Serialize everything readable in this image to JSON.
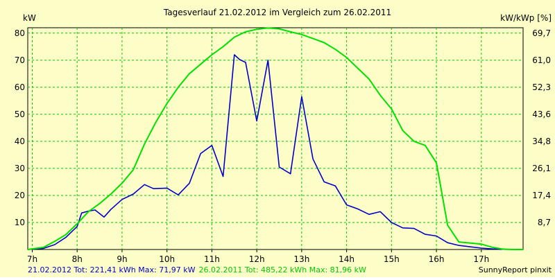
{
  "chart_data": {
    "type": "line",
    "title": "Tagesverlauf 21.02.2012 im Vergleich zum 26.02.2011",
    "ylabel_left": "kW",
    "ylabel_right": "kW/kWp [%]",
    "xlim": [
      6.9,
      17.93
    ],
    "ylim": [
      0,
      82
    ],
    "x_ticks": [
      7,
      8,
      9,
      10,
      11,
      12,
      13,
      14,
      15,
      16,
      17
    ],
    "x_tick_labels": [
      "7h",
      "8h",
      "9h",
      "10h",
      "11h",
      "12h",
      "13h",
      "14h",
      "15h",
      "16h",
      "17h"
    ],
    "y_ticks_left": [
      10,
      20,
      30,
      40,
      50,
      60,
      70,
      80
    ],
    "y_ticks_right": [
      8.7,
      17.4,
      26.1,
      34.8,
      43.6,
      52.3,
      61.0,
      69.7
    ],
    "grid": true,
    "series": [
      {
        "name": "21.02.2012",
        "color": "#0000c8",
        "x": [
          6.9,
          7.25,
          7.5,
          7.75,
          8.0,
          8.1,
          8.25,
          8.4,
          8.6,
          8.75,
          9.0,
          9.25,
          9.5,
          9.7,
          10.0,
          10.25,
          10.5,
          10.75,
          11.0,
          11.25,
          11.5,
          11.62,
          11.75,
          12.0,
          12.25,
          12.5,
          12.75,
          13.0,
          13.25,
          13.5,
          13.75,
          14.0,
          14.25,
          14.5,
          14.75,
          15.0,
          15.25,
          15.5,
          15.75,
          16.0,
          16.25,
          16.5,
          16.75,
          17.0,
          17.25,
          17.5,
          17.75,
          17.93
        ],
        "y": [
          0,
          0.4,
          1.8,
          4.5,
          8.5,
          13.5,
          14.2,
          14.6,
          12.0,
          14.8,
          18.5,
          20.5,
          24.0,
          22.5,
          22.7,
          20.2,
          24.5,
          35.5,
          38.5,
          27.0,
          72.0,
          70.2,
          69.2,
          47.5,
          70.0,
          30.5,
          28.0,
          56.5,
          33.5,
          25.0,
          23.5,
          16.5,
          15.0,
          13.0,
          14.0,
          10.0,
          8.0,
          7.8,
          5.6,
          5.0,
          2.5,
          1.5,
          1.0,
          0.5,
          0.2,
          0.1,
          0.0,
          0.0
        ]
      },
      {
        "name": "26.02.2011",
        "color": "#00e000",
        "x": [
          6.9,
          7.25,
          7.5,
          7.75,
          8.0,
          8.25,
          8.5,
          8.75,
          9.0,
          9.25,
          9.5,
          9.75,
          10.0,
          10.25,
          10.5,
          10.75,
          11.0,
          11.25,
          11.5,
          11.75,
          12.0,
          12.25,
          12.5,
          12.75,
          13.0,
          13.25,
          13.5,
          13.75,
          14.0,
          14.25,
          14.5,
          14.75,
          15.0,
          15.25,
          15.5,
          15.75,
          16.0,
          16.25,
          16.5,
          16.75,
          17.0,
          17.25,
          17.5,
          17.75,
          17.93
        ],
        "y": [
          0,
          0.8,
          3.0,
          5.5,
          9.5,
          14.0,
          17.0,
          20.5,
          24.5,
          29.5,
          39.0,
          47.0,
          54.0,
          60.0,
          65.0,
          68.5,
          72.0,
          75.0,
          78.5,
          80.5,
          81.4,
          81.9,
          81.6,
          80.5,
          79.5,
          78.0,
          76.5,
          74.0,
          71.0,
          67.0,
          63.0,
          57.0,
          52.0,
          44.0,
          40.0,
          38.5,
          32.0,
          9.0,
          2.8,
          2.4,
          2.0,
          0.8,
          0.1,
          0.0,
          0.0
        ]
      }
    ]
  },
  "footer": {
    "series1_summary": "21.02.2012 Tot: 221,41 kWh Max: 71,97 kW",
    "series2_summary": "26.02.2011 Tot: 485,22 kWh Max: 81,96 kW",
    "credit": "SunnyReport pinxit"
  }
}
